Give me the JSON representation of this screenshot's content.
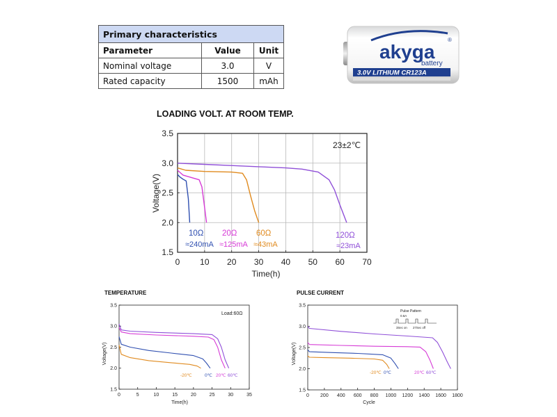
{
  "table": {
    "title": "Primary characteristics",
    "headers": [
      "Parameter",
      "Value",
      "Unit"
    ],
    "rows": [
      [
        "Nominal voltage",
        "3.0",
        "V"
      ],
      [
        "Rated capacity",
        "1500",
        "mAh"
      ]
    ]
  },
  "battery": {
    "brand": "akyga",
    "sub": "battery",
    "band_text": "3.0V LITHIUM CR123A"
  },
  "chart_data": [
    {
      "type": "line",
      "title": "LOADING VOLT. AT ROOM TEMP.",
      "xlabel": "Time(h)",
      "ylabel": "Voltage(V)",
      "xlim": [
        0,
        70
      ],
      "ylim": [
        1.5,
        3.5
      ],
      "xticks": [
        0,
        10,
        20,
        30,
        40,
        50,
        60,
        70
      ],
      "yticks": [
        1.5,
        2.0,
        2.5,
        3.0,
        3.5
      ],
      "grid": true,
      "annotation": "23±2℃",
      "series": [
        {
          "name": "10Ω",
          "note": "≈240mA",
          "color": "#2f4fb0",
          "x": [
            0,
            0.8,
            2,
            3.2,
            4,
            4.5
          ],
          "y": [
            2.81,
            2.77,
            2.73,
            2.7,
            2.4,
            2.0
          ]
        },
        {
          "name": "20Ω",
          "note": "≈125mA",
          "color": "#d63ad6",
          "x": [
            0,
            2,
            5,
            8,
            9,
            10,
            10.7
          ],
          "y": [
            2.88,
            2.8,
            2.76,
            2.72,
            2.6,
            2.25,
            2.0
          ]
        },
        {
          "name": "60Ω",
          "note": "≈43mA",
          "color": "#e08a1e",
          "x": [
            0,
            3,
            10,
            20,
            24,
            25.5,
            27,
            28.5,
            30
          ],
          "y": [
            2.92,
            2.88,
            2.86,
            2.85,
            2.83,
            2.72,
            2.45,
            2.2,
            2.0
          ]
        },
        {
          "name": "120Ω",
          "note": "≈23mA",
          "color": "#8f4fd8",
          "x": [
            0,
            10,
            20,
            30,
            40,
            46,
            52,
            56,
            58,
            60,
            62.5
          ],
          "y": [
            3.0,
            2.98,
            2.96,
            2.94,
            2.92,
            2.9,
            2.85,
            2.72,
            2.55,
            2.3,
            2.0
          ]
        }
      ]
    },
    {
      "type": "line",
      "title": "TEMPERATURE",
      "xlabel": "Time(h)",
      "ylabel": "Voltage(V)",
      "xlim": [
        0,
        35
      ],
      "ylim": [
        1.5,
        3.5
      ],
      "xticks": [
        0,
        5,
        10,
        15,
        20,
        25,
        30,
        35
      ],
      "yticks": [
        1.5,
        2.0,
        2.5,
        3.0,
        3.5
      ],
      "grid": false,
      "annotation": "Load:60Ω",
      "series": [
        {
          "name": "-20℃",
          "color": "#e08a1e",
          "x": [
            0,
            0.6,
            3,
            8,
            14,
            19,
            21,
            22
          ],
          "y": [
            2.55,
            2.33,
            2.25,
            2.18,
            2.13,
            2.09,
            2.05,
            2.0
          ]
        },
        {
          "name": "0℃",
          "color": "#2f4fb0",
          "x": [
            0,
            0.6,
            3,
            8,
            14,
            20,
            22.5,
            23.5,
            24.5
          ],
          "y": [
            2.75,
            2.57,
            2.5,
            2.42,
            2.36,
            2.3,
            2.22,
            2.12,
            2.0
          ]
        },
        {
          "name": "20℃",
          "color": "#d63ad6",
          "x": [
            0,
            0.6,
            3,
            10,
            20,
            24,
            25.5,
            26.5,
            27.5,
            28.5
          ],
          "y": [
            2.97,
            2.86,
            2.82,
            2.79,
            2.76,
            2.74,
            2.68,
            2.5,
            2.2,
            2.0
          ]
        },
        {
          "name": "60℃",
          "color": "#8f4fd8",
          "x": [
            0,
            0.6,
            3,
            10,
            20,
            25,
            26.5,
            27.5,
            28.5,
            29.5
          ],
          "y": [
            3.05,
            2.91,
            2.88,
            2.85,
            2.82,
            2.8,
            2.7,
            2.5,
            2.2,
            2.0
          ]
        }
      ]
    },
    {
      "type": "line",
      "title": "PULSE CURRENT",
      "xlabel": "Cycle",
      "ylabel": "Voltage(V)",
      "xlim": [
        0,
        1800
      ],
      "ylim": [
        1.5,
        3.5
      ],
      "xticks": [
        0,
        200,
        400,
        600,
        800,
        1000,
        1200,
        1400,
        1600,
        1800
      ],
      "yticks": [
        1.5,
        2.0,
        2.5,
        3.0,
        3.5
      ],
      "grid": false,
      "inset": {
        "title": "Pulse Pattern",
        "current": "0.6A",
        "on": "3Sec on",
        "off": "27Sec off"
      },
      "series": [
        {
          "name": "-20℃",
          "color": "#e08a1e",
          "x": [
            0,
            20,
            200,
            500,
            800,
            900,
            950,
            980
          ],
          "y": [
            2.3,
            2.27,
            2.26,
            2.25,
            2.23,
            2.2,
            2.1,
            2.0
          ]
        },
        {
          "name": "0℃",
          "color": "#2f4fb0",
          "x": [
            0,
            20,
            300,
            600,
            900,
            1000,
            1050,
            1090
          ],
          "y": [
            2.45,
            2.4,
            2.38,
            2.36,
            2.33,
            2.25,
            2.12,
            2.0
          ]
        },
        {
          "name": "20℃",
          "color": "#d63ad6",
          "x": [
            0,
            20,
            400,
            800,
            1200,
            1350,
            1420,
            1470,
            1510
          ],
          "y": [
            2.62,
            2.57,
            2.55,
            2.53,
            2.52,
            2.51,
            2.4,
            2.2,
            2.0
          ]
        },
        {
          "name": "60℃",
          "color": "#8f4fd8",
          "x": [
            0,
            20,
            400,
            800,
            1200,
            1500,
            1560,
            1620,
            1680,
            1720
          ],
          "y": [
            3.0,
            2.95,
            2.88,
            2.82,
            2.77,
            2.73,
            2.62,
            2.4,
            2.15,
            2.0
          ]
        }
      ]
    }
  ]
}
